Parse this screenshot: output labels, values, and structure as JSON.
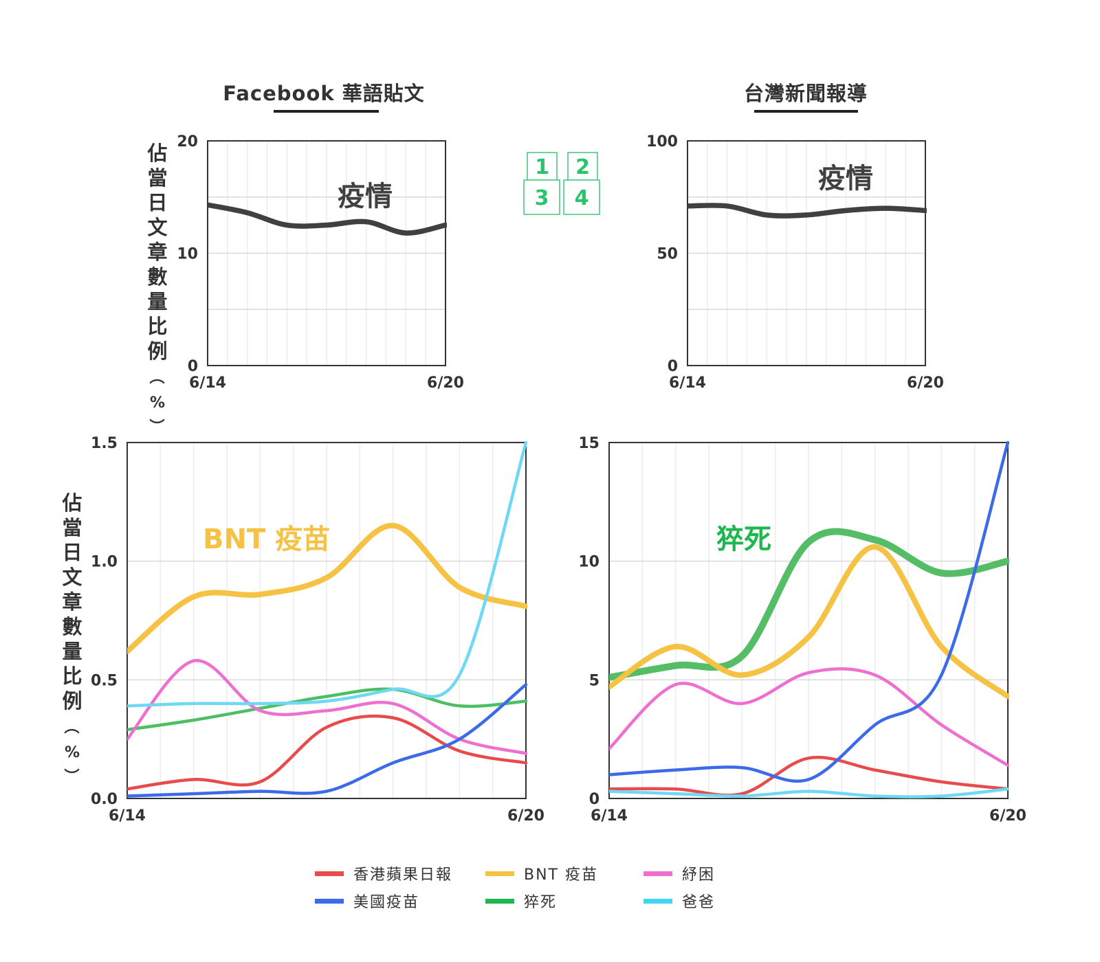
{
  "colors": {
    "grid": "#d9d9d9",
    "frame": "#333333",
    "text": "#333333",
    "thick_line": "#404040",
    "key_border": "#3ec97a",
    "key_text": "#2ac46c"
  },
  "column_titles": {
    "left": "Facebook 華語貼文",
    "right": "台灣新聞報導"
  },
  "ylabels": {
    "top": "佔當日文章數量比例（%）",
    "bottom": "佔當日文章數量比例（%）"
  },
  "panel_key": [
    "1",
    "2",
    "3",
    "4"
  ],
  "legend": [
    {
      "label": "香港蘋果日報",
      "color": "#e84b4b"
    },
    {
      "label": "美國疫苗",
      "color": "#3b6be8"
    },
    {
      "label": "BNT 疫苗",
      "color": "#f5c243"
    },
    {
      "label": "猝死",
      "color": "#1fb650"
    },
    {
      "label": "紓困",
      "color": "#ee6fd0"
    },
    {
      "label": "爸爸",
      "color": "#3fd7ef"
    }
  ],
  "chart_data": [
    {
      "type": "line",
      "panel": "1",
      "categories": [
        "6/14",
        "6/15",
        "6/16",
        "6/17",
        "6/18",
        "6/19",
        "6/20"
      ],
      "xticks": [
        "6/14",
        "6/20"
      ],
      "ylim": [
        0,
        20
      ],
      "yticks": [
        "0",
        "10",
        "20"
      ],
      "annotation": "疫情",
      "series": [
        {
          "name": "疫情",
          "color": "#404040",
          "values": [
            14.3,
            13.6,
            12.5,
            12.5,
            12.8,
            11.8,
            12.5
          ]
        }
      ]
    },
    {
      "type": "line",
      "panel": "2",
      "categories": [
        "6/14",
        "6/15",
        "6/16",
        "6/17",
        "6/18",
        "6/19",
        "6/20"
      ],
      "xticks": [
        "6/14",
        "6/20"
      ],
      "ylim": [
        0,
        100
      ],
      "yticks": [
        "0",
        "50",
        "100"
      ],
      "annotation": "疫情",
      "series": [
        {
          "name": "疫情",
          "color": "#404040",
          "values": [
            71,
            71,
            67,
            67,
            69,
            70,
            69
          ]
        }
      ]
    },
    {
      "type": "line",
      "panel": "3",
      "categories": [
        "6/14",
        "6/15",
        "6/16",
        "6/17",
        "6/18",
        "6/19",
        "6/20"
      ],
      "xticks": [
        "6/14",
        "6/20"
      ],
      "ylim": [
        0,
        1.5
      ],
      "yticks": [
        "0.0",
        "0.5",
        "1.0",
        "1.5"
      ],
      "annotation": "BNT 疫苗",
      "annotation_color": "#f5c243",
      "series": [
        {
          "name": "香港蘋果日報",
          "color": "#e84b4b",
          "values": [
            0.04,
            0.08,
            0.07,
            0.3,
            0.34,
            0.2,
            0.15
          ]
        },
        {
          "name": "美國疫苗",
          "color": "#3b6be8",
          "values": [
            0.01,
            0.02,
            0.03,
            0.03,
            0.15,
            0.25,
            0.48
          ]
        },
        {
          "name": "BNT 疫苗",
          "color": "#f5c243",
          "values": [
            0.62,
            0.85,
            0.86,
            0.93,
            1.15,
            0.89,
            0.81
          ]
        },
        {
          "name": "猝死",
          "color": "#4cbf62",
          "values": [
            0.29,
            0.33,
            0.38,
            0.43,
            0.46,
            0.39,
            0.41
          ]
        },
        {
          "name": "紓困",
          "color": "#ee6fd0",
          "values": [
            0.25,
            0.58,
            0.37,
            0.37,
            0.4,
            0.25,
            0.19
          ]
        },
        {
          "name": "爸爸",
          "color": "#6fd8f5",
          "values": [
            0.39,
            0.4,
            0.4,
            0.41,
            0.46,
            0.52,
            1.5
          ]
        }
      ]
    },
    {
      "type": "line",
      "panel": "4",
      "categories": [
        "6/14",
        "6/15",
        "6/16",
        "6/17",
        "6/18",
        "6/19",
        "6/20"
      ],
      "xticks": [
        "6/14",
        "6/20"
      ],
      "ylim": [
        0,
        15
      ],
      "yticks": [
        "0",
        "5",
        "10",
        "15"
      ],
      "annotation": "猝死",
      "annotation_color": "#1fb650",
      "series": [
        {
          "name": "香港蘋果日報",
          "color": "#e84b4b",
          "values": [
            0.4,
            0.4,
            0.2,
            1.7,
            1.2,
            0.7,
            0.4
          ]
        },
        {
          "name": "美國疫苗",
          "color": "#3b6be8",
          "values": [
            1.0,
            1.2,
            1.3,
            0.8,
            3.1,
            5.2,
            15
          ]
        },
        {
          "name": "BNT 疫苗",
          "color": "#f5c243",
          "values": [
            4.7,
            6.4,
            5.2,
            6.8,
            10.6,
            6.4,
            4.3
          ]
        },
        {
          "name": "猝死",
          "color": "#55bd66",
          "values": [
            5.1,
            5.6,
            6.0,
            10.8,
            10.9,
            9.5,
            10.0
          ]
        },
        {
          "name": "紓困",
          "color": "#ee6fd0",
          "values": [
            2.1,
            4.8,
            4.0,
            5.3,
            5.2,
            3.1,
            1.4
          ]
        },
        {
          "name": "爸爸",
          "color": "#6fd8f5",
          "values": [
            0.3,
            0.2,
            0.1,
            0.3,
            0.1,
            0.1,
            0.4
          ]
        }
      ]
    }
  ]
}
